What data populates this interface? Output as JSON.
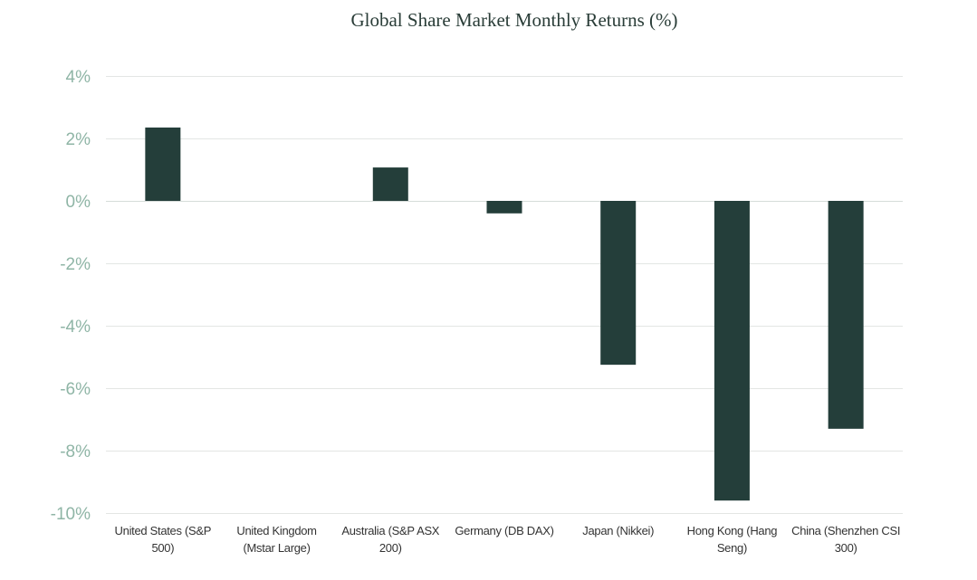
{
  "colors": {
    "bar": "#243e3a",
    "y_tick_text": "#8fb5a6",
    "x_tick_text": "#333333",
    "title_text": "#2a3d38",
    "grid": "#e3e6e4"
  },
  "chart_data": {
    "type": "bar",
    "title": "Global Share Market Monthly Returns (%)",
    "xlabel": "",
    "ylabel": "",
    "ylim": [
      -10,
      4
    ],
    "y_ticks": [
      "4%",
      "2%",
      "0%",
      "-2%",
      "-4%",
      "-6%",
      "-8%",
      "-10%"
    ],
    "y_tick_values": [
      4,
      2,
      0,
      -2,
      -4,
      -6,
      -8,
      -10
    ],
    "grid": true,
    "legend": "none",
    "categories": [
      [
        "United States (S&P",
        "500)"
      ],
      [
        "United Kingdom",
        "(Mstar Large)"
      ],
      [
        "Australia (S&P ASX",
        "200)"
      ],
      [
        "Germany (DB DAX)"
      ],
      [
        "Japan (Nikkei)"
      ],
      [
        "Hong Kong (Hang",
        "Seng)"
      ],
      [
        "China (Shenzhen CSI",
        "300)"
      ]
    ],
    "values": [
      2.35,
      0.0,
      1.07,
      -0.4,
      -5.25,
      -9.6,
      -7.3
    ]
  }
}
